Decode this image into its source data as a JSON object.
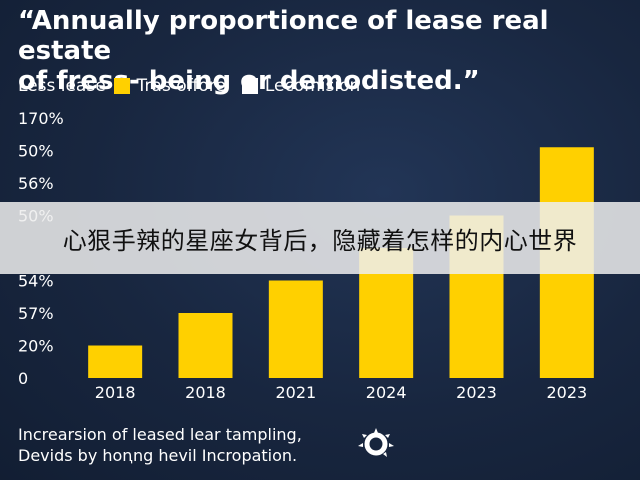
{
  "title_line1": "“Annually proportionce of lease real estate",
  "title_line2": "of fress- being or demodisted.”",
  "legend": {
    "items": [
      {
        "label": "Less lease",
        "swatch": false
      },
      {
        "label": "Tras offore",
        "color": "#ffd000",
        "swatch": true
      },
      {
        "label": "Lecomision",
        "color": "#ffffff",
        "swatch": true
      }
    ]
  },
  "colors": {
    "bar": "#ffd000",
    "axis_text": "#ffffff",
    "background": "#1a2a44"
  },
  "chart_data": {
    "type": "bar",
    "categories": [
      "2018",
      "2018",
      "2021",
      "2024",
      "2023",
      "2023"
    ],
    "values": [
      1,
      2,
      3,
      4,
      5,
      7.1
    ],
    "y_tick_labels": [
      "0",
      "20%",
      "57%",
      "54%",
      "",
      "50%",
      "56%",
      "50%",
      "170%"
    ],
    "ylim": [
      0,
      8
    ],
    "grid": false,
    "legend_position": "top-left"
  },
  "overlay_caption": "心狠手辣的星座女背后，隐藏着怎样的内心世界",
  "footer": {
    "line1": "Increarsion of leased lear tampling,",
    "line2": "Devids by hoꞑng hevil Incropation."
  },
  "footer_logo_icon": "circular-burst-logo-icon"
}
